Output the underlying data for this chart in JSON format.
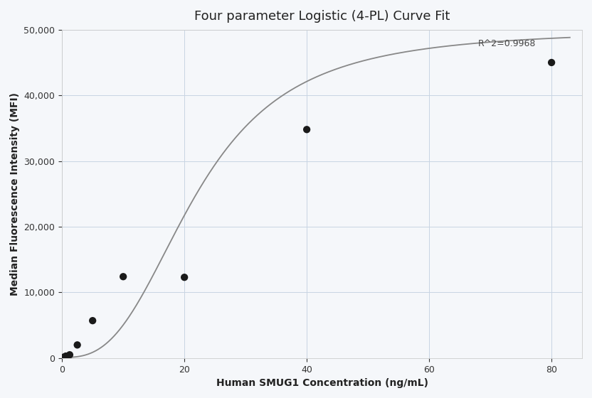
{
  "title": "Four parameter Logistic (4-PL) Curve Fit",
  "xlabel": "Human SMUG1 Concentration (ng/mL)",
  "ylabel": "Median Fluorescence Intensity (MFI)",
  "scatter_x": [
    0.313,
    0.625,
    1.25,
    2.5,
    5.0,
    10.0,
    20.0,
    40.0,
    80.0
  ],
  "scatter_y": [
    150,
    300,
    500,
    2000,
    5700,
    12400,
    12300,
    34800,
    45000
  ],
  "xlim": [
    0,
    85
  ],
  "ylim": [
    0,
    50000
  ],
  "yticks": [
    0,
    10000,
    20000,
    30000,
    40000,
    50000
  ],
  "xticks": [
    0,
    20,
    40,
    60,
    80
  ],
  "r2_text": "R^2=0.9968",
  "r2_x": 68,
  "r2_y": 47500,
  "curve_color": "#888888",
  "scatter_color": "#1a1a1a",
  "grid_color": "#c8d4e3",
  "background_color": "#f5f7fa",
  "4pl_A": 100.0,
  "4pl_B": 2.8,
  "4pl_C": 22.0,
  "4pl_D": 50000.0,
  "title_fontsize": 13,
  "label_fontsize": 10,
  "tick_fontsize": 9,
  "annotation_fontsize": 9
}
